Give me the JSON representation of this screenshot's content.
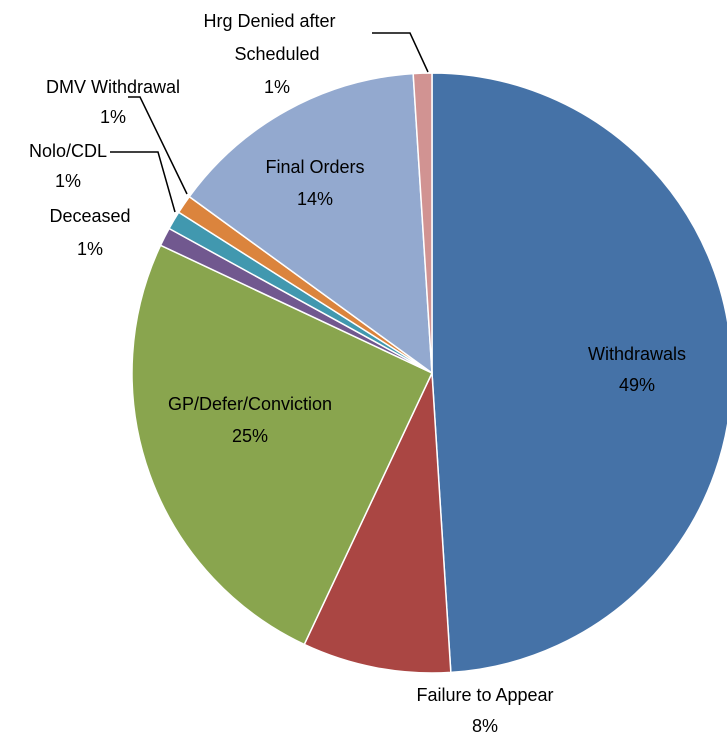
{
  "chart_data": {
    "type": "pie",
    "categories": [
      "Withdrawals",
      "Failure to Appear",
      "GP/Defer/Conviction",
      "Deceased",
      "Nolo/CDL",
      "DMV Withdrawal",
      "Final Orders",
      "Hrg Denied after Scheduled"
    ],
    "values": [
      49,
      8,
      25,
      1,
      1,
      1,
      14,
      1
    ],
    "value_labels": [
      "49%",
      "8%",
      "25%",
      "1%",
      "1%",
      "1%",
      "14%",
      "1%"
    ],
    "colors": [
      "#4572a7",
      "#aa4643",
      "#89a54e",
      "#71588f",
      "#4198af",
      "#db843d",
      "#93a9cf",
      "#d19392"
    ]
  }
}
